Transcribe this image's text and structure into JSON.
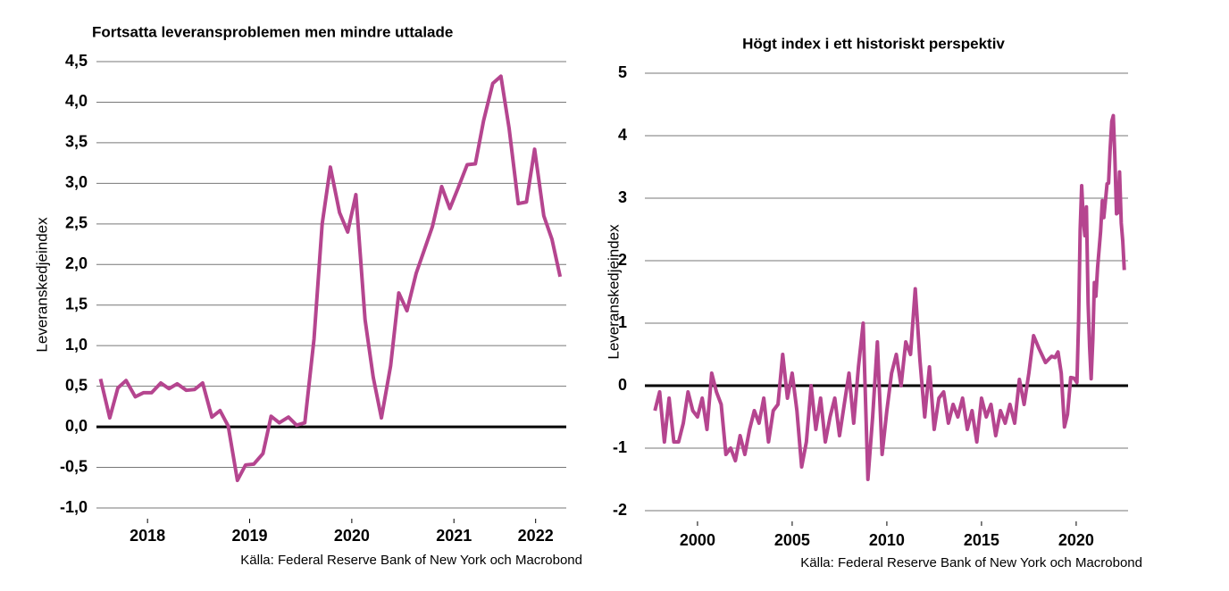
{
  "chart_data": [
    {
      "type": "line",
      "title": "Fortsatta leveransproblemen men mindre uttalade",
      "y_label": "Leveranskedjeindex",
      "source": "Källa: Federal Reserve Bank of New York och Macrobond",
      "color": "#b5458f",
      "grid": true,
      "xlim": [
        2018,
        2022.6
      ],
      "xticks": [
        {
          "value": 2018.5,
          "label": "2018"
        },
        {
          "value": 2019.5,
          "label": "2019"
        },
        {
          "value": 2020.5,
          "label": "2020"
        },
        {
          "value": 2021.5,
          "label": "2021"
        },
        {
          "value": 2022.3,
          "label": "2022"
        }
      ],
      "ylim": [
        -1.0,
        4.5
      ],
      "yticks": [
        {
          "value": -1.0,
          "label": "-1,0"
        },
        {
          "value": -0.5,
          "label": "-0,5"
        },
        {
          "value": 0.0,
          "label": "0,0"
        },
        {
          "value": 0.5,
          "label": "0,5"
        },
        {
          "value": 1.0,
          "label": "1,0"
        },
        {
          "value": 1.5,
          "label": "1,5"
        },
        {
          "value": 2.0,
          "label": "2,0"
        },
        {
          "value": 2.5,
          "label": "2,5"
        },
        {
          "value": 3.0,
          "label": "3,0"
        },
        {
          "value": 3.5,
          "label": "3,5"
        },
        {
          "value": 4.0,
          "label": "4,0"
        },
        {
          "value": 4.5,
          "label": "4,5"
        }
      ],
      "x": [
        2018.04,
        2018.13,
        2018.21,
        2018.29,
        2018.38,
        2018.46,
        2018.54,
        2018.63,
        2018.71,
        2018.79,
        2018.88,
        2018.96,
        2019.04,
        2019.13,
        2019.21,
        2019.29,
        2019.38,
        2019.46,
        2019.54,
        2019.63,
        2019.71,
        2019.79,
        2019.88,
        2019.96,
        2020.04,
        2020.13,
        2020.21,
        2020.29,
        2020.38,
        2020.46,
        2020.54,
        2020.63,
        2020.71,
        2020.79,
        2020.88,
        2020.96,
        2021.04,
        2021.13,
        2021.21,
        2021.29,
        2021.38,
        2021.46,
        2021.54,
        2021.63,
        2021.71,
        2021.79,
        2021.88,
        2021.96,
        2022.04,
        2022.13,
        2022.21,
        2022.29,
        2022.38,
        2022.46,
        2022.54
      ],
      "values": [
        0.59,
        0.11,
        0.48,
        0.57,
        0.37,
        0.42,
        0.42,
        0.54,
        0.47,
        0.53,
        0.45,
        0.46,
        0.54,
        0.12,
        0.2,
        0.01,
        -0.66,
        -0.47,
        -0.46,
        -0.33,
        0.13,
        0.05,
        0.12,
        0.02,
        0.05,
        1.08,
        2.5,
        3.2,
        2.64,
        2.4,
        2.86,
        1.32,
        0.61,
        0.11,
        0.75,
        1.65,
        1.43,
        1.89,
        2.18,
        2.47,
        2.96,
        2.69,
        2.94,
        3.23,
        3.24,
        3.77,
        4.23,
        4.32,
        3.68,
        2.75,
        2.77,
        3.42,
        2.6,
        2.31,
        1.85
      ]
    },
    {
      "type": "line",
      "title": "Högt index i ett historiskt perspektiv",
      "y_label": "Leveranskedjeindex",
      "source": "Källa: Federal Reserve Bank of New York och Macrobond",
      "color": "#b5458f",
      "grid": true,
      "xlim": [
        1997.22,
        2022.74
      ],
      "xticks": [
        2000,
        2005,
        2010,
        2015,
        2020
      ],
      "ylim": [
        -2,
        5
      ],
      "yticks": [
        -2,
        -1,
        0,
        1,
        2,
        3,
        4,
        5
      ],
      "x": [
        1997.75,
        1998.0,
        1998.25,
        1998.5,
        1998.75,
        1999.0,
        1999.25,
        1999.5,
        1999.75,
        2000.0,
        2000.25,
        2000.5,
        2000.75,
        2001.0,
        2001.25,
        2001.5,
        2001.75,
        2002.0,
        2002.25,
        2002.5,
        2002.75,
        2003.0,
        2003.25,
        2003.5,
        2003.75,
        2004.0,
        2004.25,
        2004.5,
        2004.75,
        2005.0,
        2005.25,
        2005.5,
        2005.75,
        2006.0,
        2006.25,
        2006.5,
        2006.75,
        2007.0,
        2007.25,
        2007.5,
        2007.75,
        2008.0,
        2008.25,
        2008.5,
        2008.75,
        2009.0,
        2009.25,
        2009.5,
        2009.75,
        2010.0,
        2010.25,
        2010.5,
        2010.75,
        2011.0,
        2011.25,
        2011.5,
        2011.75,
        2012.0,
        2012.25,
        2012.5,
        2012.75,
        2013.0,
        2013.25,
        2013.5,
        2013.75,
        2014.0,
        2014.25,
        2014.5,
        2014.75,
        2015.0,
        2015.25,
        2015.5,
        2015.75,
        2016.0,
        2016.25,
        2016.5,
        2016.75,
        2017.0,
        2017.25,
        2017.5,
        2017.75,
        2018.04,
        2018.21,
        2018.38,
        2018.54,
        2018.71,
        2018.88,
        2019.04,
        2019.21,
        2019.38,
        2019.54,
        2019.71,
        2019.88,
        2020.04,
        2020.13,
        2020.21,
        2020.29,
        2020.38,
        2020.46,
        2020.54,
        2020.63,
        2020.71,
        2020.79,
        2020.88,
        2020.96,
        2021.04,
        2021.13,
        2021.21,
        2021.29,
        2021.38,
        2021.46,
        2021.54,
        2021.63,
        2021.71,
        2021.79,
        2021.88,
        2021.96,
        2022.04,
        2022.13,
        2022.21,
        2022.29,
        2022.38,
        2022.46,
        2022.54
      ],
      "values": [
        -0.4,
        -0.1,
        -0.9,
        -0.2,
        -0.9,
        -0.9,
        -0.6,
        -0.1,
        -0.4,
        -0.5,
        -0.2,
        -0.7,
        0.2,
        -0.1,
        -0.3,
        -1.1,
        -1.0,
        -1.2,
        -0.8,
        -1.1,
        -0.7,
        -0.4,
        -0.6,
        -0.2,
        -0.9,
        -0.4,
        -0.3,
        0.5,
        -0.2,
        0.2,
        -0.4,
        -1.3,
        -0.9,
        0.0,
        -0.7,
        -0.2,
        -0.9,
        -0.5,
        -0.2,
        -0.8,
        -0.3,
        0.2,
        -0.6,
        0.3,
        1.0,
        -1.5,
        -0.5,
        0.7,
        -1.1,
        -0.4,
        0.2,
        0.5,
        0.0,
        0.7,
        0.5,
        1.55,
        0.4,
        -0.5,
        0.3,
        -0.7,
        -0.2,
        -0.1,
        -0.6,
        -0.3,
        -0.5,
        -0.2,
        -0.7,
        -0.4,
        -0.9,
        -0.2,
        -0.5,
        -0.3,
        -0.8,
        -0.4,
        -0.6,
        -0.3,
        -0.6,
        0.1,
        -0.3,
        0.2,
        0.8,
        0.59,
        0.48,
        0.37,
        0.42,
        0.47,
        0.45,
        0.54,
        0.2,
        -0.66,
        -0.46,
        0.13,
        0.12,
        0.05,
        1.08,
        2.5,
        3.2,
        2.64,
        2.4,
        2.86,
        1.32,
        0.61,
        0.11,
        0.75,
        1.65,
        1.43,
        1.89,
        2.18,
        2.47,
        2.96,
        2.69,
        2.94,
        3.23,
        3.24,
        3.77,
        4.23,
        4.32,
        3.68,
        2.75,
        2.77,
        3.42,
        2.6,
        2.31,
        1.85
      ]
    }
  ]
}
